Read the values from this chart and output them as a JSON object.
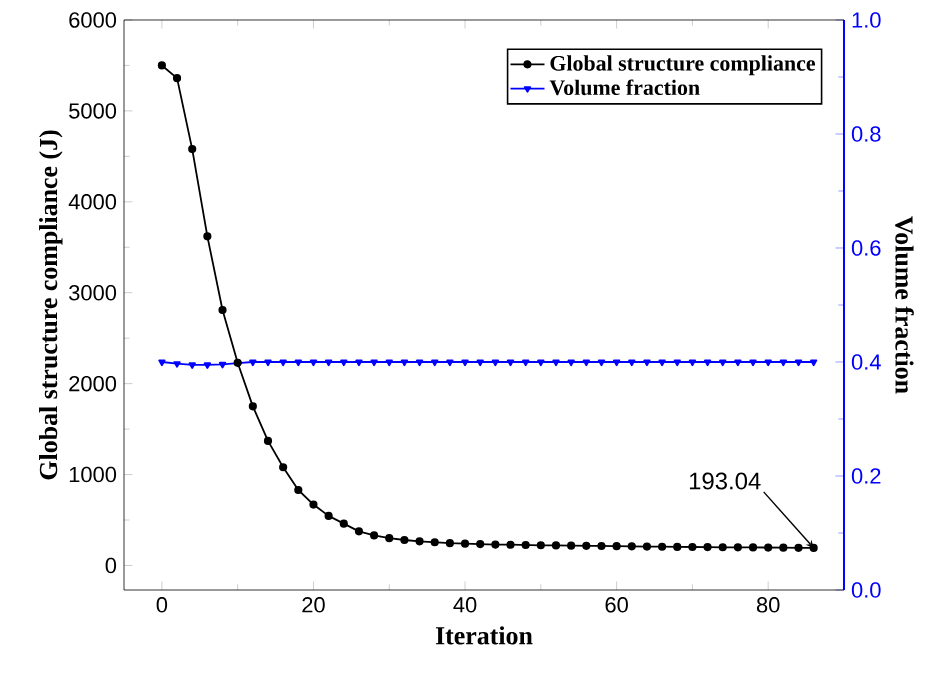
{
  "chart_data": {
    "type": "line",
    "xlabel": "Iteration",
    "ylabel": "Global structure compliance (J)",
    "y2label": "Volume fraction",
    "x": [
      0,
      2,
      4,
      6,
      8,
      10,
      12,
      14,
      16,
      18,
      20,
      22,
      24,
      26,
      28,
      30,
      32,
      34,
      36,
      38,
      40,
      42,
      44,
      46,
      48,
      50,
      52,
      54,
      56,
      58,
      60,
      62,
      64,
      66,
      68,
      70,
      72,
      74,
      76,
      78,
      80,
      82,
      84,
      86
    ],
    "series": [
      {
        "name": "Global structure compliance",
        "color": "#000000",
        "marker": "circle",
        "values": [
          5500,
          5360,
          4580,
          3620,
          2810,
          2230,
          1750,
          1370,
          1080,
          830,
          670,
          545,
          460,
          375,
          330,
          300,
          280,
          265,
          255,
          245,
          240,
          235,
          230,
          228,
          225,
          222,
          220,
          218,
          216,
          214,
          212,
          210,
          208,
          206,
          204,
          203,
          202,
          200,
          199,
          198,
          197,
          196,
          194,
          193.04
        ]
      },
      {
        "name": "Volume fraction",
        "color": "#0000ff",
        "marker": "triangle",
        "axis": "y2",
        "values": [
          0.4,
          0.397,
          0.395,
          0.395,
          0.396,
          0.398,
          0.4,
          0.4,
          0.4,
          0.4,
          0.4,
          0.4,
          0.4,
          0.4,
          0.4,
          0.4,
          0.4,
          0.4,
          0.4,
          0.4,
          0.4,
          0.4,
          0.4,
          0.4,
          0.4,
          0.4,
          0.4,
          0.4,
          0.4,
          0.4,
          0.4,
          0.4,
          0.4,
          0.4,
          0.4,
          0.4,
          0.4,
          0.4,
          0.4,
          0.4,
          0.4,
          0.4,
          0.4,
          0.4
        ]
      }
    ],
    "xlim": [
      -5,
      90
    ],
    "xticks": [
      0,
      20,
      40,
      60,
      80
    ],
    "ylim": [
      -270,
      6000
    ],
    "yticks": [
      0,
      1000,
      2000,
      3000,
      4000,
      5000,
      6000
    ],
    "y2lim": [
      0,
      1
    ],
    "y2ticks": [
      {
        "value": 0,
        "label": "0.0"
      },
      0.2,
      0.4,
      0.6,
      0.8,
      {
        "value": 1,
        "label": "1.0"
      }
    ],
    "annotations": [
      {
        "text": "193.04",
        "x": 86,
        "y": 193.04
      }
    ],
    "legend": "top right",
    "grid": false
  }
}
